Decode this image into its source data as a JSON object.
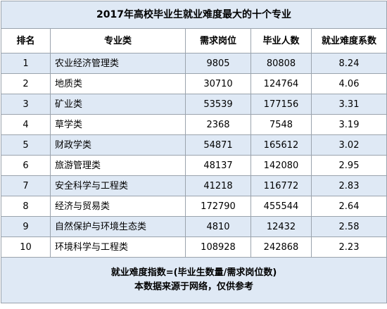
{
  "title": "2017年高校毕业生就业难度最大的十个专业",
  "headers": {
    "rank": "排名",
    "major": "专业类",
    "demand": "需求岗位",
    "graduates": "毕业人数",
    "coefficient": "就业难度系数"
  },
  "rows": [
    {
      "rank": "1",
      "major": "农业经济管理类",
      "demand": "9805",
      "graduates": "80808",
      "coefficient": "8.24"
    },
    {
      "rank": "2",
      "major": "地质类",
      "demand": "30710",
      "graduates": "124764",
      "coefficient": "4.06"
    },
    {
      "rank": "3",
      "major": "矿业类",
      "demand": "53539",
      "graduates": "177156",
      "coefficient": "3.31"
    },
    {
      "rank": "4",
      "major": "草学类",
      "demand": "2368",
      "graduates": "7548",
      "coefficient": "3.19"
    },
    {
      "rank": "5",
      "major": "财政学类",
      "demand": "54871",
      "graduates": "165612",
      "coefficient": "3.02"
    },
    {
      "rank": "6",
      "major": "旅游管理类",
      "demand": "48137",
      "graduates": "142080",
      "coefficient": "2.95"
    },
    {
      "rank": "7",
      "major": "安全科学与工程类",
      "demand": "41218",
      "graduates": "116772",
      "coefficient": "2.83"
    },
    {
      "rank": "8",
      "major": "经济与贸易类",
      "demand": "172790",
      "graduates": "455544",
      "coefficient": "2.64"
    },
    {
      "rank": "9",
      "major": "自然保护与环境生态类",
      "demand": "4810",
      "graduates": "12432",
      "coefficient": "2.58"
    },
    {
      "rank": "10",
      "major": "环境科学与工程类",
      "demand": "108928",
      "graduates": "242868",
      "coefficient": "2.23"
    }
  ],
  "footer": {
    "formula": "就业难度指数=(毕业生数量/需求岗位数)",
    "source": "本数据来源于网络，仅供参考"
  }
}
